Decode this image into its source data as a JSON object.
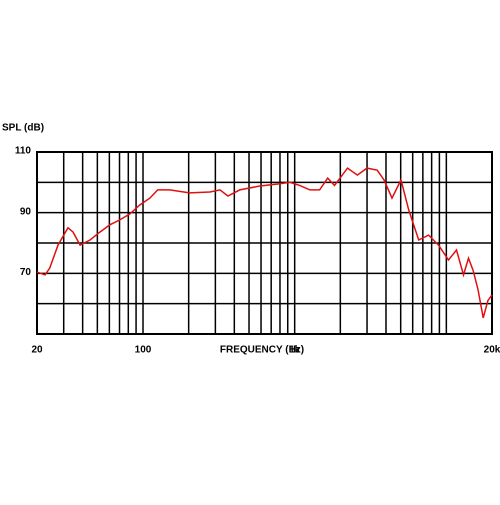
{
  "chart_data": {
    "type": "line",
    "y_label": "SPL (dB)",
    "x_label": "FREQUENCY (Hz)",
    "log_x": true,
    "xlim": [
      20,
      20000
    ],
    "ylim": [
      50,
      110
    ],
    "xticks": [
      20,
      100,
      {
        "value": 1000,
        "label": "1k"
      },
      {
        "value": 20000,
        "label": "20k"
      }
    ],
    "yticks": [
      70,
      90,
      110
    ],
    "xgrid": [
      20,
      30,
      40,
      50,
      60,
      70,
      80,
      90,
      100,
      200,
      300,
      400,
      500,
      600,
      700,
      800,
      900,
      1000,
      2000,
      3000,
      4000,
      5000,
      6000,
      7000,
      8000,
      9000,
      10000,
      20000
    ],
    "ygrid": [
      50,
      60,
      70,
      80,
      90,
      100,
      110
    ],
    "series": [
      {
        "color": "#e01010",
        "x": [
          20,
          22.6,
          24.3,
          27.5,
          32,
          34.6,
          38.5,
          44.7,
          52,
          60.5,
          70.3,
          82,
          95,
          111,
          125,
          150,
          203,
          276,
          322,
          363,
          435,
          590,
          800,
          928,
          1080,
          1260,
          1460,
          1650,
          1830,
          2230,
          2590,
          3000,
          3500,
          3880,
          4380,
          5020,
          5650,
          6570,
          7640,
          8880,
          10330,
          11660,
          12970,
          14000,
          15000,
          16200,
          17500,
          18800,
          20000
        ],
        "values": [
          70.4,
          69.5,
          71.8,
          79.3,
          85,
          83.6,
          79.3,
          81,
          83.6,
          86,
          87.6,
          89.6,
          92.5,
          94.8,
          97.5,
          97.5,
          96.5,
          96.8,
          97.5,
          95.5,
          97.5,
          98.8,
          99.5,
          100,
          99,
          97.5,
          97.5,
          101.4,
          99,
          104.7,
          102.4,
          104.7,
          104,
          100.8,
          94.8,
          100.8,
          90.9,
          81,
          82.6,
          79.3,
          74.4,
          77.7,
          69.5,
          75,
          71,
          64.5,
          55.3,
          61,
          62.9
        ]
      }
    ]
  }
}
